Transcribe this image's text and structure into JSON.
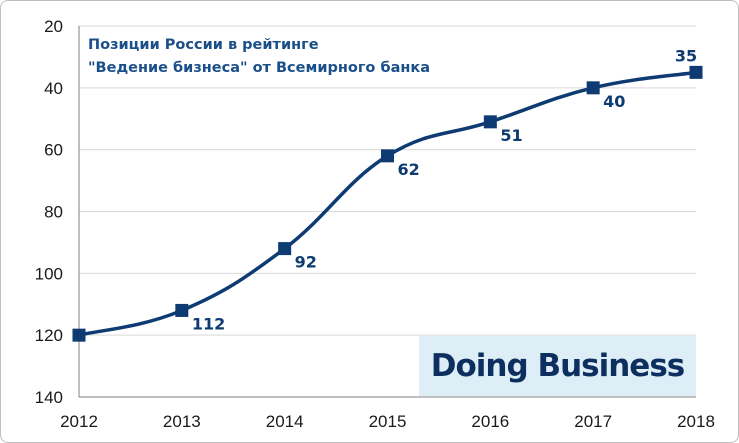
{
  "chart_data": {
    "type": "line",
    "title_lines": [
      "Позиции России в рейтинге",
      "\"Ведение бизнеса\" от Всемирного банка"
    ],
    "xlabel": "",
    "ylabel": "",
    "x": [
      "2012",
      "2013",
      "2014",
      "2015",
      "2016",
      "2017",
      "2018"
    ],
    "series": [
      {
        "values": [
          120,
          112,
          92,
          62,
          51,
          40,
          35
        ]
      }
    ],
    "data_labels": [
      "",
      "112",
      "92",
      "62",
      "51",
      "40",
      "35"
    ],
    "ylim": [
      20,
      140
    ],
    "y_inverted": true,
    "yticks": [
      "20",
      "40",
      "60",
      "80",
      "100",
      "120",
      "140"
    ],
    "grid": "horizontal",
    "line_color": "#0d3b72",
    "marker": "square",
    "logo_text": "Doing Business",
    "logo_bg": "#ddeef7"
  }
}
